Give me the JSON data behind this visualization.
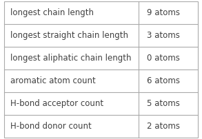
{
  "rows": [
    [
      "longest chain length",
      "9 atoms"
    ],
    [
      "longest straight chain length",
      "3 atoms"
    ],
    [
      "longest aliphatic chain length",
      "0 atoms"
    ],
    [
      "aromatic atom count",
      "6 atoms"
    ],
    [
      "H-bond acceptor count",
      "5 atoms"
    ],
    [
      "H-bond donor count",
      "2 atoms"
    ]
  ],
  "col_split": 0.695,
  "background_color": "#ffffff",
  "border_color": "#aaaaaa",
  "text_color": "#404040",
  "font_size": 8.5,
  "fig_width": 2.93,
  "fig_height": 2.02,
  "dpi": 100
}
